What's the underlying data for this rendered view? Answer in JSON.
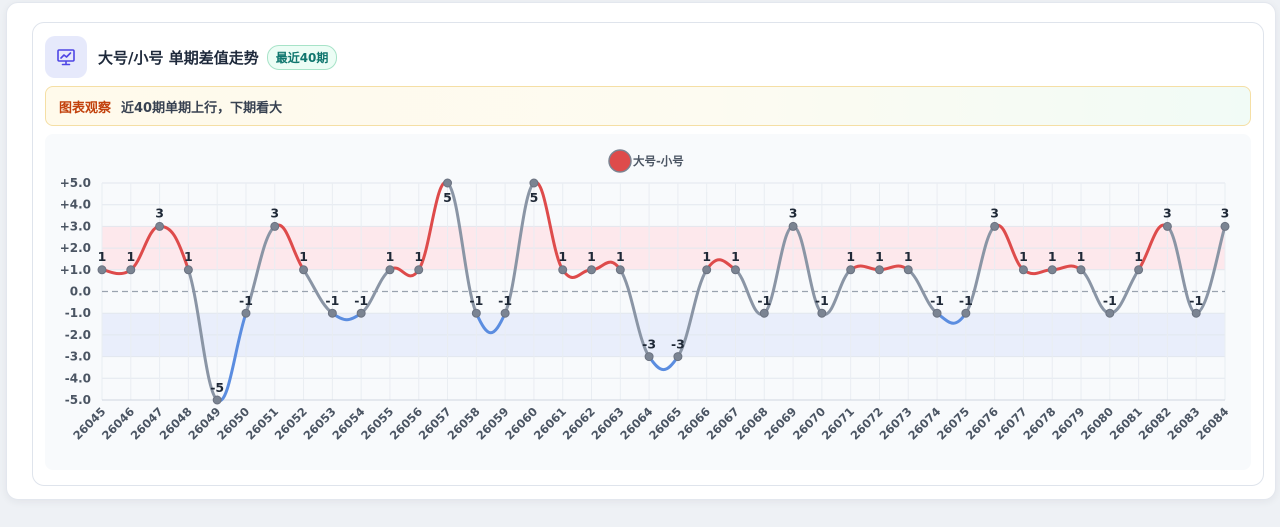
{
  "header": {
    "title": "大号/小号 单期差值走势",
    "badge": "最近40期",
    "icon": "presentation-chart-icon"
  },
  "note": {
    "label": "图表观察",
    "text": "近40期单期上行，下期看大"
  },
  "colors": {
    "positive": "#de4b4b",
    "negative": "#5b8de0",
    "neutral": "#8a95a5",
    "positive_band": "#fde8ec",
    "negative_band": "#e9eefb"
  },
  "chart_data": {
    "type": "line",
    "title": "",
    "legend": {
      "label": "大号-小号",
      "placement": "top-center"
    },
    "x": [
      "26045",
      "26046",
      "26047",
      "26048",
      "26049",
      "26050",
      "26051",
      "26052",
      "26053",
      "26054",
      "26055",
      "26056",
      "26057",
      "26058",
      "26059",
      "26060",
      "26061",
      "26062",
      "26063",
      "26064",
      "26065",
      "26066",
      "26067",
      "26068",
      "26069",
      "26070",
      "26071",
      "26072",
      "26073",
      "26074",
      "26075",
      "26076",
      "26077",
      "26078",
      "26079",
      "26080",
      "26081",
      "26082",
      "26083",
      "26084"
    ],
    "series": [
      {
        "name": "大号-小号",
        "values": [
          1,
          1,
          3,
          1,
          -5,
          -1,
          3,
          1,
          -1,
          -1,
          1,
          1,
          5,
          -1,
          -1,
          5,
          1,
          1,
          1,
          -3,
          -3,
          1,
          1,
          -1,
          3,
          -1,
          1,
          1,
          1,
          -1,
          -1,
          3,
          1,
          1,
          1,
          -1,
          1,
          3,
          -1,
          3
        ]
      }
    ],
    "ylim": [
      -5,
      5
    ],
    "y_ticks": [
      "+5.0",
      "+4.0",
      "+3.0",
      "+2.0",
      "+1.0",
      "0.0",
      "-1.0",
      "-2.0",
      "-3.0",
      "-4.0",
      "-5.0"
    ],
    "y_tick_values": [
      5,
      4,
      3,
      2,
      1,
      0,
      -1,
      -2,
      -3,
      -4,
      -5
    ],
    "bands": [
      {
        "from": 1,
        "to": 3,
        "kind": "positive"
      },
      {
        "from": -3,
        "to": -1,
        "kind": "negative"
      }
    ],
    "zero_line": "dashed",
    "grid": true
  }
}
